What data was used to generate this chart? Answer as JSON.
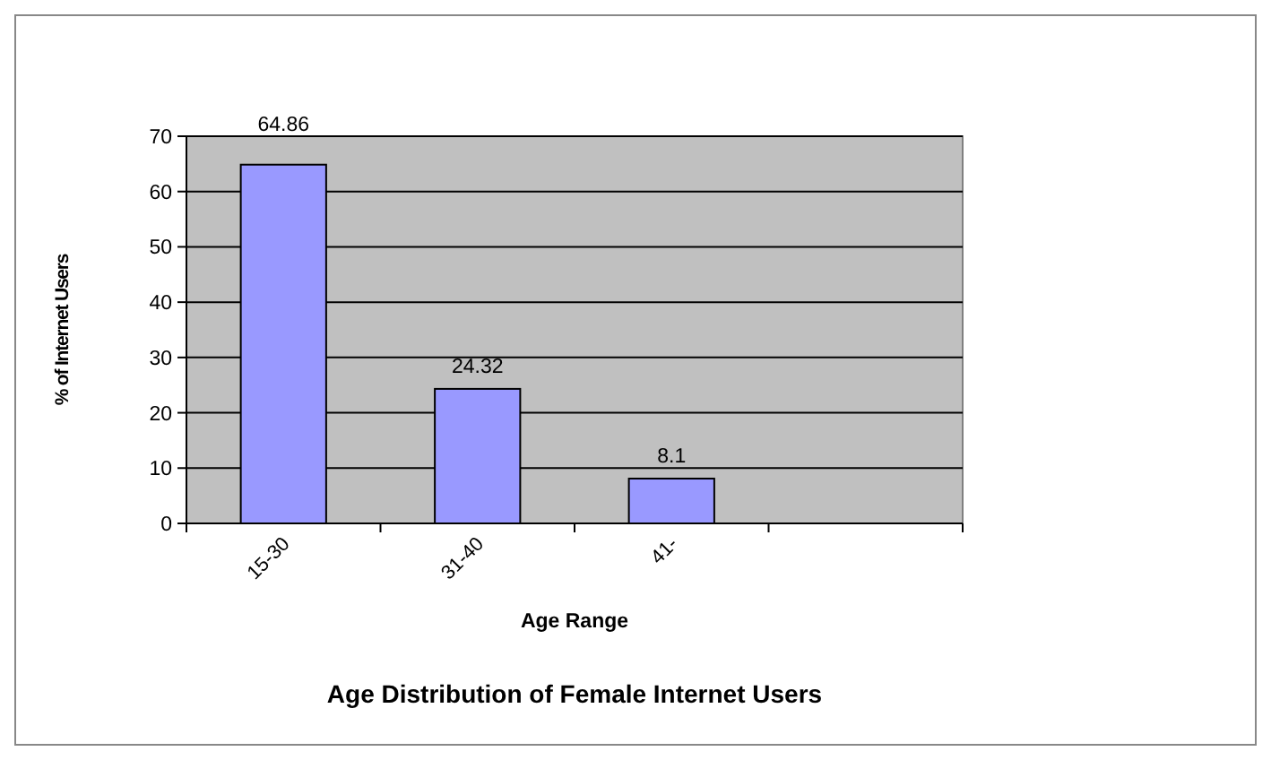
{
  "chart_data": {
    "type": "bar",
    "title": "Age Distribution of Female Internet Users",
    "xlabel": "Age Range",
    "ylabel": "% of Internet Users",
    "categories": [
      "15-30",
      "31-40",
      "41-",
      null
    ],
    "values": [
      64.86,
      24.32,
      8.1,
      null
    ],
    "color": "#9999ff",
    "ylim": [
      0,
      70
    ],
    "yticks": [
      0,
      10,
      20,
      30,
      40,
      50,
      60,
      70
    ],
    "grid": "y",
    "data_labels": true
  }
}
